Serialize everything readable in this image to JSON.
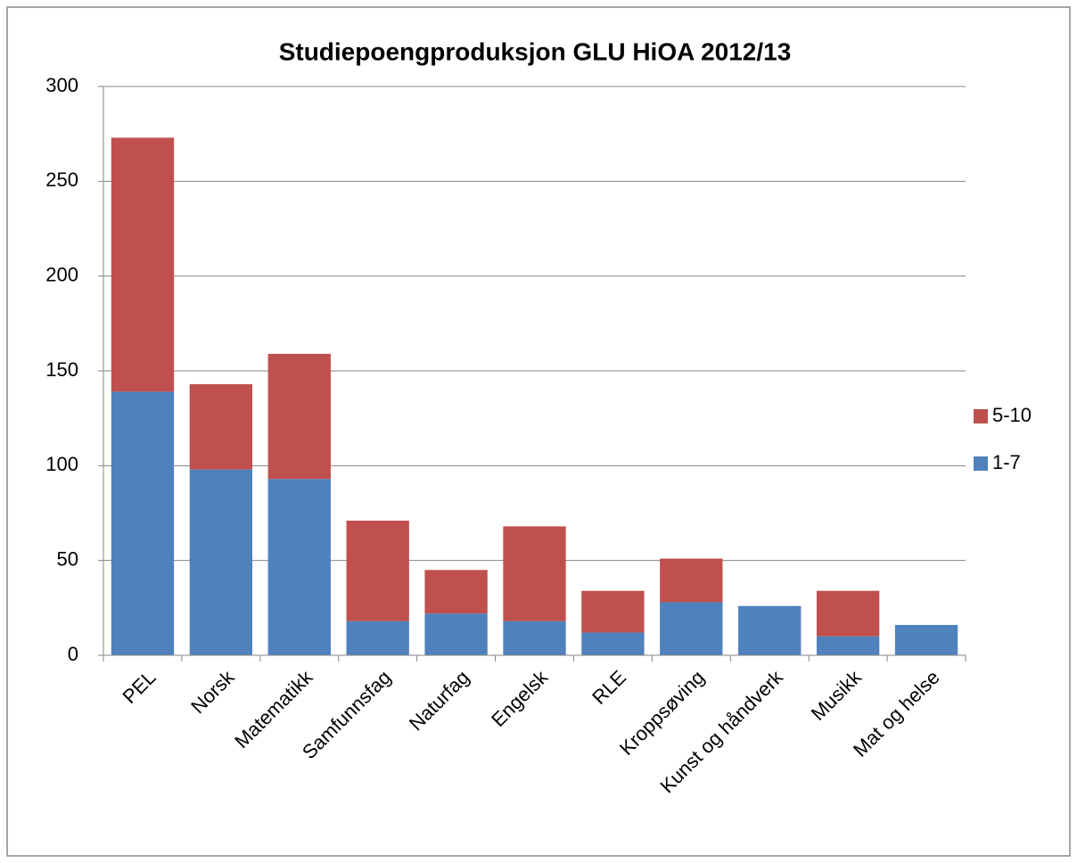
{
  "chart_data": {
    "type": "stacked_bar",
    "title": "Studiepoengproduksjon GLU HiOA 2012/13",
    "categories": [
      "PEL",
      "Norsk",
      "Matematikk",
      "Samfunnsfag",
      "Naturfag",
      "Engelsk",
      "RLE",
      "Kroppsøving",
      "Kunst og håndverk",
      "Musikk",
      "Mat og helse"
    ],
    "series": [
      {
        "name": "1-7",
        "color": "#4f81bd",
        "values": [
          139,
          98,
          93,
          18,
          22,
          18,
          12,
          28,
          26,
          10,
          16
        ]
      },
      {
        "name": "5-10",
        "color": "#c0504d",
        "values": [
          134,
          45,
          66,
          53,
          23,
          50,
          22,
          23,
          0,
          24,
          0
        ]
      }
    ],
    "ylim": [
      0,
      300
    ],
    "yticks": [
      0,
      50,
      100,
      150,
      200,
      250,
      300
    ],
    "grid": true,
    "legend": "right"
  }
}
